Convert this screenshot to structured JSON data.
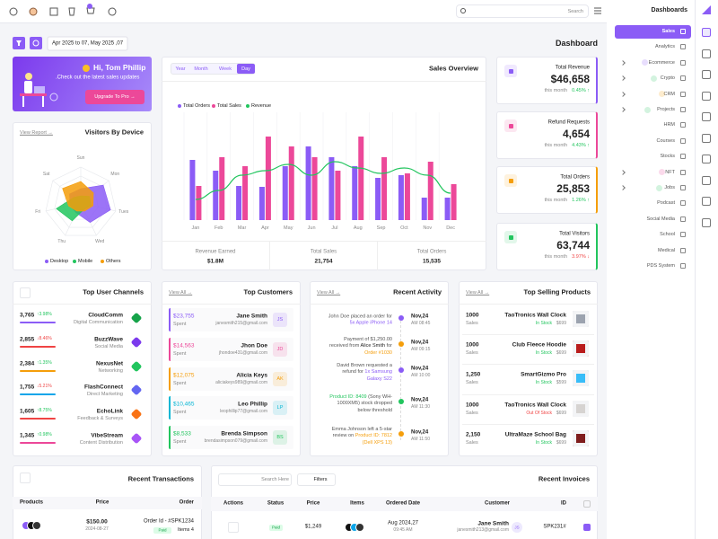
{
  "topbar": {
    "search": "Search"
  },
  "sidebar": {
    "title": "Dashboards",
    "items": [
      "Sales",
      "Analytics",
      "Ecommerce",
      "Crypto",
      "CRM",
      "Projects",
      "HRM",
      "Courses",
      "Stocks",
      "NFT",
      "Jobs",
      "Podcast",
      "Social Media",
      "School",
      "Medical",
      "PDS System"
    ]
  },
  "toolbar": {
    "date_range": "Apr 2025 to 07, May 2025 ,07",
    "title": "Dashboard"
  },
  "welcome": {
    "greeting": "Hi, Tom Phillip",
    "message": ".Check out the latest sales updates",
    "button": "Upgrade To Pro →"
  },
  "visitors": {
    "title": "Visitors By Device",
    "link": "View Report →",
    "chart": {
      "type": "radar",
      "categories": [
        "Sun",
        "Mon",
        "Tues",
        "Wed",
        "Thu",
        "Fri",
        "Sat"
      ],
      "series": [
        {
          "name": "Desktop",
          "color": "#8b5cf6",
          "values": [
            40,
            80,
            85,
            60,
            30,
            30,
            40
          ]
        },
        {
          "name": "Mobile",
          "color": "#22c55e",
          "values": [
            20,
            30,
            30,
            20,
            55,
            70,
            25
          ]
        },
        {
          "name": "Others",
          "color": "#f59e0b",
          "values": [
            60,
            45,
            35,
            25,
            25,
            35,
            65
          ]
        }
      ]
    }
  },
  "sales_overview": {
    "title": "Sales Overview",
    "tabs": [
      "Year",
      "Month",
      "Week",
      "Day"
    ],
    "chart": {
      "type": "bar",
      "categories": [
        "Jan",
        "Feb",
        "Mar",
        "Apr",
        "May",
        "Jun",
        "Jul",
        "Aug",
        "Sep",
        "Oct",
        "Nov",
        "Dec"
      ],
      "series": [
        {
          "name": "Total Orders",
          "color": "#8b5cf6",
          "values": [
            67,
            55,
            38,
            37,
            60,
            82,
            70,
            60,
            47,
            50,
            25,
            25
          ]
        },
        {
          "name": "Total Sales",
          "color": "#ec4899",
          "values": [
            38,
            70,
            60,
            93,
            82,
            70,
            55,
            93,
            70,
            52,
            65,
            40
          ]
        },
        {
          "name": "Revenue",
          "color": "#22c55e",
          "type": "line",
          "values": [
            23,
            33,
            50,
            55,
            62,
            50,
            65,
            58,
            52,
            58,
            50,
            30
          ]
        }
      ]
    },
    "stats": [
      {
        "label": "Revenue Earned",
        "value": "$1.8M"
      },
      {
        "label": "Total Sales",
        "value": "21,754"
      },
      {
        "label": "Total Orders",
        "value": "15,535"
      }
    ]
  },
  "kpis": [
    {
      "label": "Total Revenue",
      "value": "$46,658",
      "note": "this month",
      "change": "0.45% ↑",
      "color": "#8b5cf6",
      "change_color": "#22c55e"
    },
    {
      "label": "Refund Requests",
      "value": "4,654",
      "note": "this month",
      "change": "4.43% ↑",
      "color": "#ec4899",
      "change_color": "#22c55e"
    },
    {
      "label": "Total Orders",
      "value": "25,853",
      "note": "this month",
      "change": "1.26% ↑",
      "color": "#f59e0b",
      "change_color": "#22c55e"
    },
    {
      "label": "Total Visitors",
      "value": "63,744",
      "note": "this month",
      "change": "3.97% ↓",
      "color": "#22c55e",
      "change_color": "#ef4444"
    }
  ],
  "user_channels": {
    "title": "Top User Channels",
    "rows": [
      {
        "value": "3,765",
        "change": "↑3.98%",
        "name": "CloudComm",
        "category": "Digital Communication",
        "color": "#8b5cf6",
        "change_color": "#22c55e",
        "icon_color": "#16a34a"
      },
      {
        "value": "2,855",
        "change": "↓8.46%",
        "name": "BuzzWave",
        "category": "Social Media",
        "color": "#ef4444",
        "change_color": "#ef4444",
        "icon_color": "#7c3aed"
      },
      {
        "value": "2,384",
        "change": "↑1.35%",
        "name": "NexusNet",
        "category": "Networking",
        "color": "#f59e0b",
        "change_color": "#22c55e",
        "icon_color": "#22c55e"
      },
      {
        "value": "1,755",
        "change": "↓5.21%",
        "name": "FlashConnect",
        "category": "Direct Marketing",
        "color": "#0ea5e9",
        "change_color": "#ef4444",
        "icon_color": "#6366f1"
      },
      {
        "value": "1,605",
        "change": "↑8.75%",
        "name": "EchoLink",
        "category": "Feedback & Surveys",
        "color": "#ef4444",
        "change_color": "#22c55e",
        "icon_color": "#f97316"
      },
      {
        "value": "1,345",
        "change": "↑0.98%",
        "name": "VibeStream",
        "category": "Content Distribution",
        "color": "#ec4899",
        "change_color": "#22c55e",
        "icon_color": "#a855f7"
      }
    ]
  },
  "customers": {
    "title": "Top Customers",
    "link": "View All →",
    "rows": [
      {
        "amount": "$23,755",
        "label": "Spent",
        "name": "Jane Smith",
        "email": "janesmith215@gmail.com",
        "initials": "JS",
        "color": "#8b5cf6"
      },
      {
        "amount": "$14,563",
        "label": "Spent",
        "name": "Jhon Doe",
        "email": "jhondoe431@gmail.com",
        "initials": "JD",
        "color": "#ec4899"
      },
      {
        "amount": "$12,075",
        "label": "Spent",
        "name": "Alicia Keys",
        "email": "aliciakeys989@gmail.com",
        "initials": "AK",
        "color": "#f59e0b"
      },
      {
        "amount": "$10,465",
        "label": "Spent",
        "name": "Leo Phillip",
        "email": "leophillip77@gmail.com",
        "initials": "LP",
        "color": "#06b6d4"
      },
      {
        "amount": "$8,533",
        "label": "Spent",
        "name": "Brenda Simpson",
        "email": "brendasimpson079@gmail.com",
        "initials": "BS",
        "color": "#22c55e"
      }
    ]
  },
  "activity": {
    "title": "Recent Activity",
    "link": "View All →",
    "items": [
      {
        "segments": [
          "John Doe placed an order for ",
          {
            "text": "5x Apple iPhone 14",
            "color": "#8b5cf6"
          }
        ],
        "date": "Nov,24",
        "time": "AM 08:45",
        "color": "#8b5cf6"
      },
      {
        "segments": [
          "Payment of $1,250.00 received from ",
          {
            "text": "Alice Smith",
            "color": "#222222"
          },
          " for ",
          {
            "text": "Order #1030",
            "color": "#f59e0b"
          }
        ],
        "date": "Nov,24",
        "time": "AM 09:15",
        "color": "#f59e0b"
      },
      {
        "segments": [
          "David Brown requested a refund for ",
          {
            "text": "1x Samsung Galaxy S22",
            "color": "#8b5cf6"
          }
        ],
        "date": "Nov,24",
        "time": "AM 10:00",
        "color": "#8b5cf6"
      },
      {
        "segments": [
          {
            "text": "Product ID: 8409",
            "color": "#22c55e"
          },
          " (Sony WH-1000XM5) stock dropped below threshold"
        ],
        "date": "Nov,24",
        "time": "AM 11:30",
        "color": "#22c55e"
      },
      {
        "segments": [
          "Emma Johnson left a 5-star review on ",
          {
            "text": "Product ID: 7812 (Dell XPS 13)",
            "color": "#f59e0b"
          }
        ],
        "date": "Nov,24",
        "time": "AM 11:50",
        "color": "#f59e0b"
      }
    ]
  },
  "products": {
    "title": "Top Selling Products",
    "link": "View All →",
    "rows": [
      {
        "sales": "1000",
        "label": "Sales",
        "name": "TaoTronics Wall Clock",
        "status": "In Stock",
        "price": "$699",
        "status_color": "#22c55e",
        "thumb": "#9ca3af"
      },
      {
        "sales": "1000",
        "label": "Sales",
        "name": "Club Fleece Hoodie",
        "status": "In Stock",
        "price": "$699",
        "status_color": "#22c55e",
        "thumb": "#b91c1c"
      },
      {
        "sales": "1,250",
        "label": "Sales",
        "name": "SmartGizmo Pro",
        "status": "In Stock",
        "price": "$599",
        "status_color": "#22c55e",
        "thumb": "#38bdf8"
      },
      {
        "sales": "1000",
        "label": "Sales",
        "name": "TaoTronics Wall Clock",
        "status": "Out Of Stock",
        "price": "$699",
        "status_color": "#ef4444",
        "thumb": "#d6d3d1"
      },
      {
        "sales": "2,150",
        "label": "Sales",
        "name": "UltraMaze School Bag",
        "status": "In Stock",
        "price": "$699",
        "status_color": "#22c55e",
        "thumb": "#7f1d1d"
      }
    ]
  },
  "transactions": {
    "title": "Recent Transactions",
    "columns": [
      "Products",
      "Price",
      "Order"
    ],
    "rows": [
      {
        "price": "$150.00",
        "date": "2024-08-27",
        "order": "Order Id - #SPK1234",
        "status": "Paid",
        "items": "Items 4"
      }
    ]
  },
  "invoices": {
    "title": "Recent Invoices",
    "search": "Search Here",
    "filters": "Filters",
    "columns": [
      "Actions",
      "Status",
      "Price",
      "Items",
      "Ordered Date",
      "Customer",
      "ID"
    ],
    "rows": [
      {
        "status": "Paid",
        "price": "$1,249",
        "date": "Aug 2024,27",
        "time": "09:45 AM",
        "name": "Jane Smith",
        "email": "janesmith213@gmail.com",
        "initials": "JS",
        "id": "SPK231#"
      }
    ]
  }
}
